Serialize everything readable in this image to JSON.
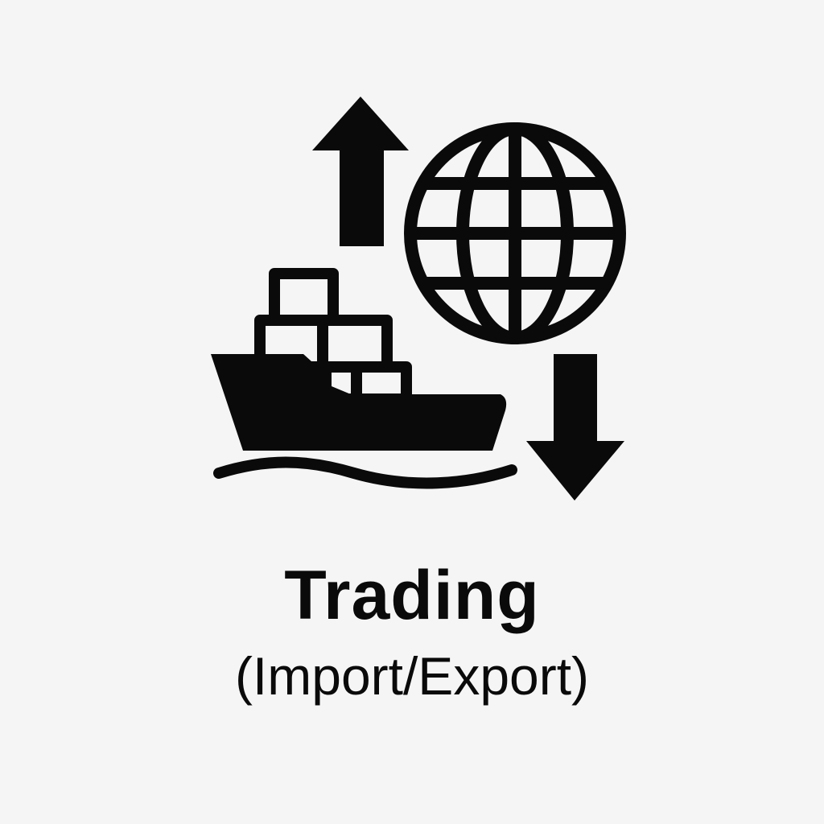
{
  "label": {
    "title": "Trading",
    "subtitle": "(Import/Export)"
  },
  "icons": {
    "export": "arrow-up-icon",
    "globe": "globe-icon",
    "ship": "cargo-ship-icon",
    "import": "arrow-down-icon",
    "water": "wave-icon"
  },
  "colors": {
    "background": "#f5f5f5",
    "ink": "#0a0a0a"
  }
}
